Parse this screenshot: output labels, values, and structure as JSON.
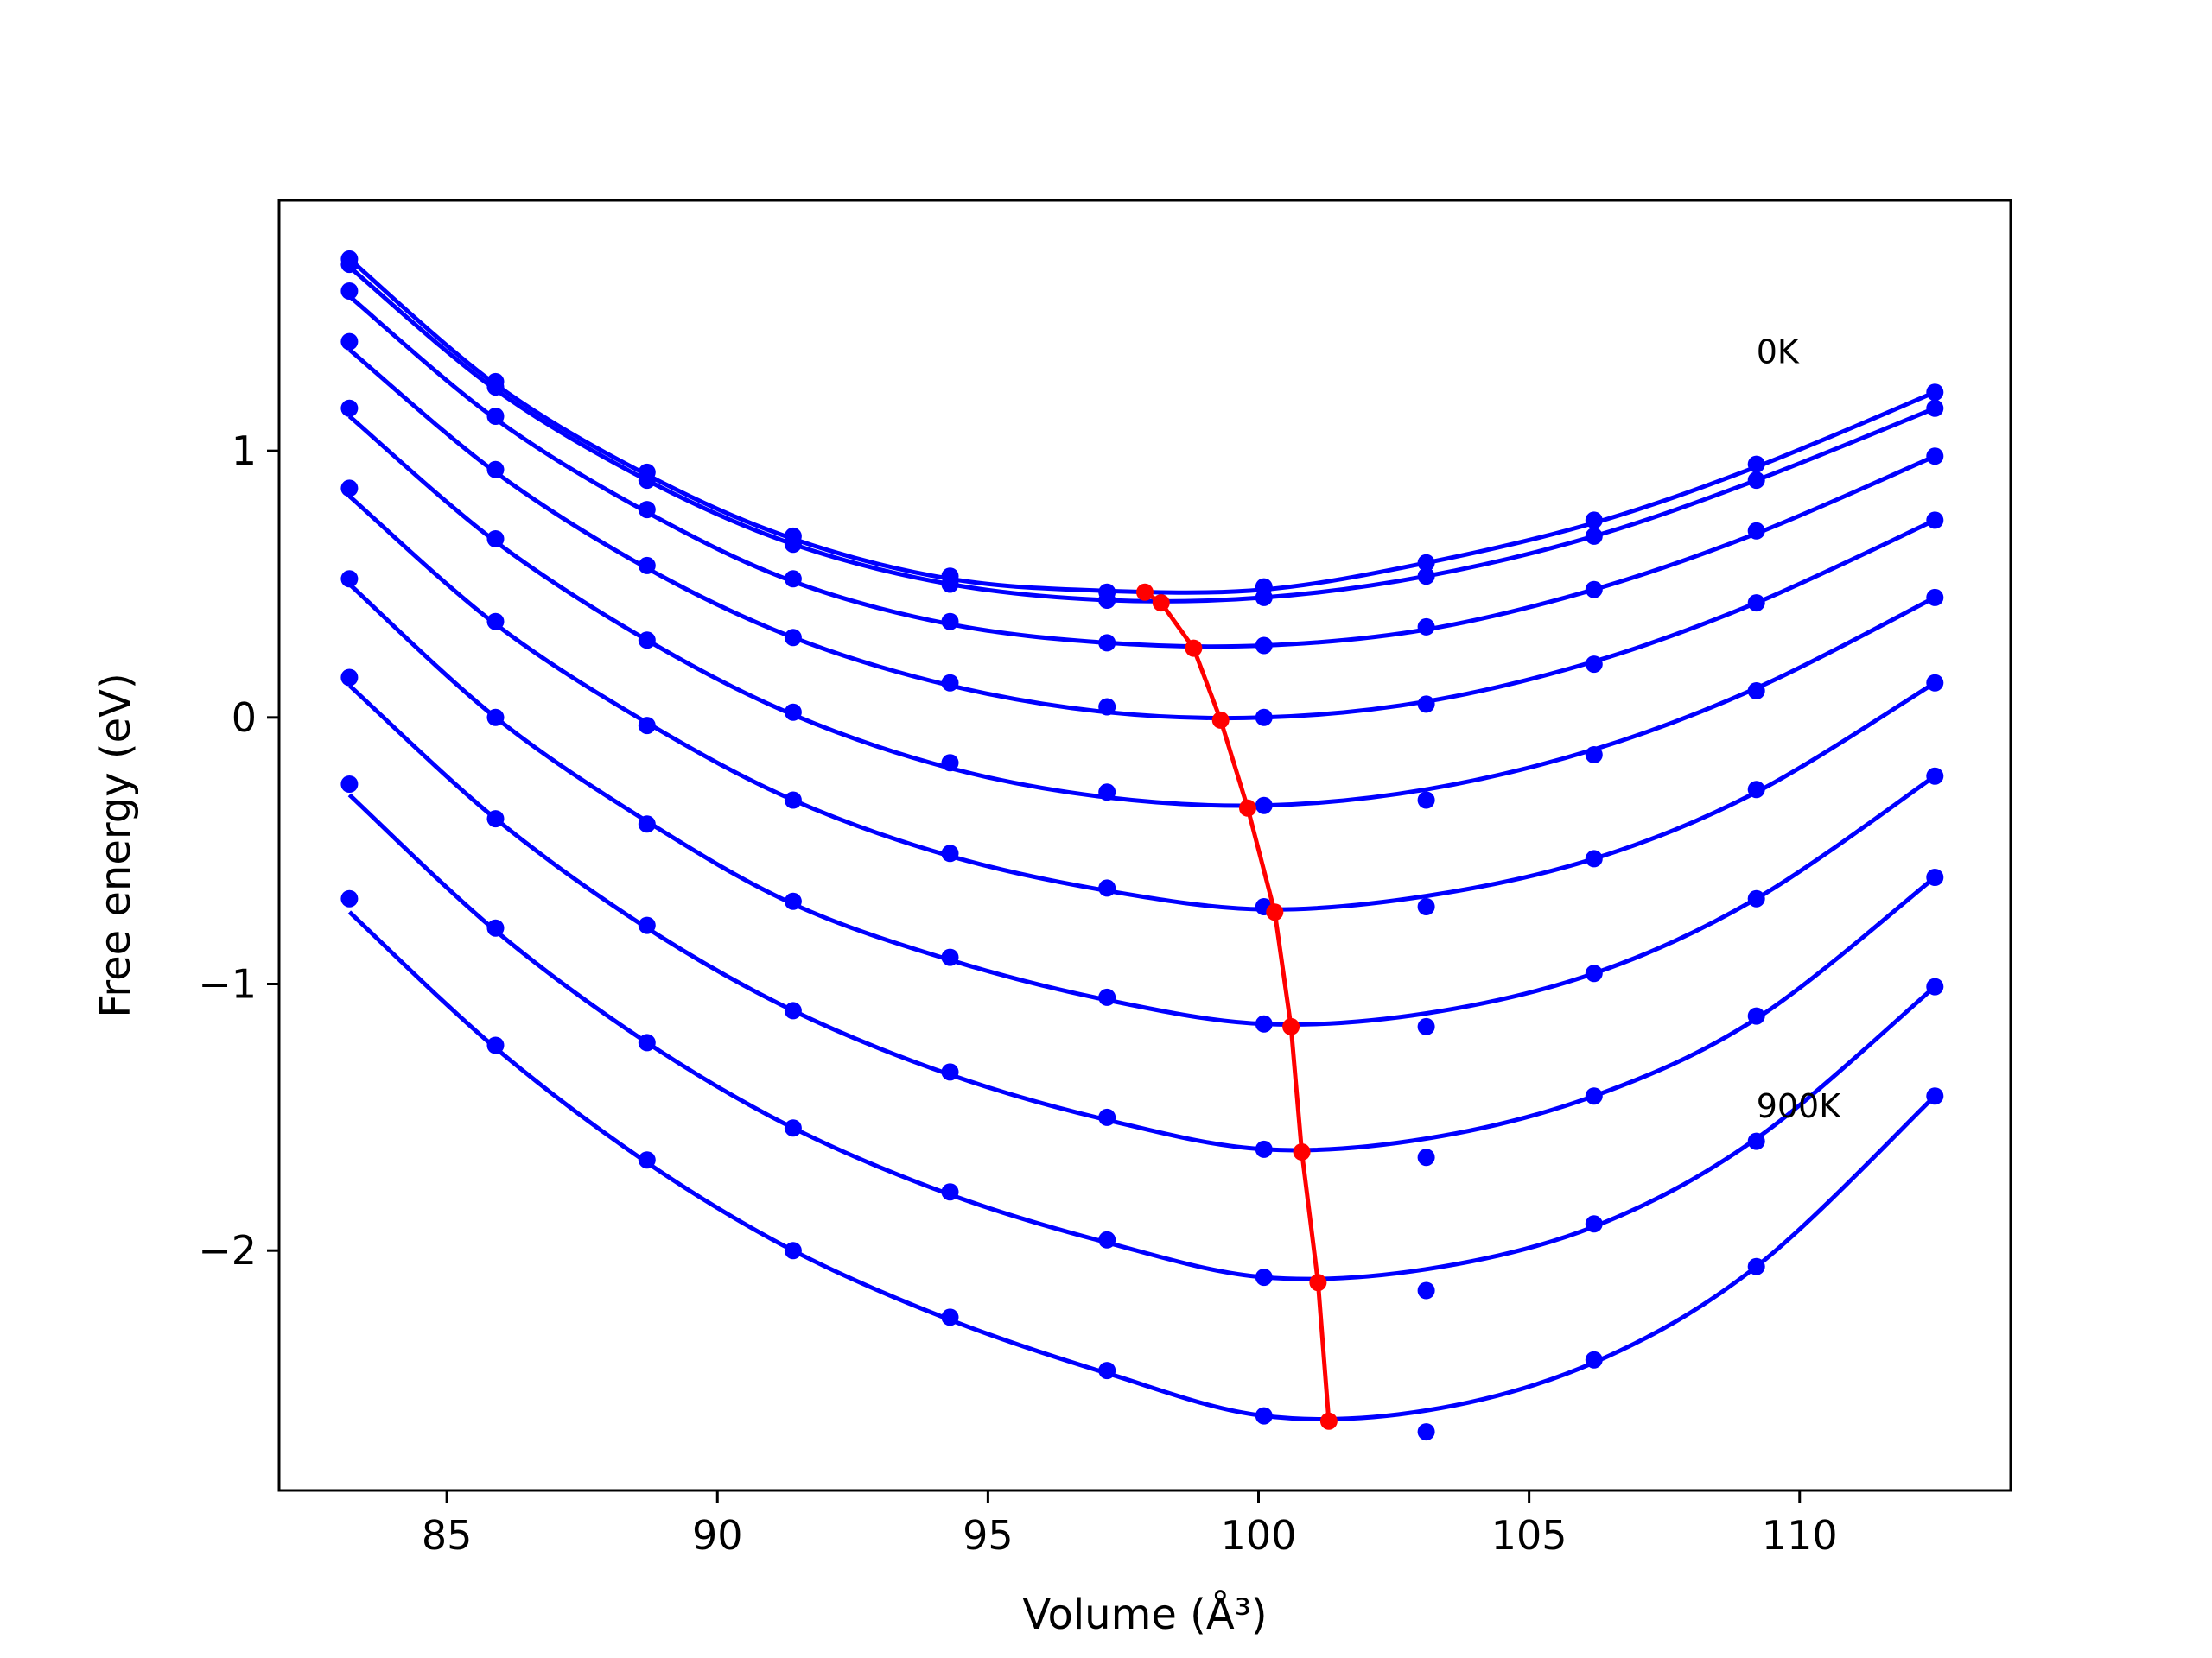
{
  "chart_data": {
    "type": "line",
    "title": "",
    "xlabel": "Volume (Å³)",
    "ylabel": "Free energy (eV)",
    "xlim": [
      81.9,
      113.9
    ],
    "ylim": [
      -2.9,
      1.94
    ],
    "xticks": [
      85,
      90,
      95,
      100,
      105,
      110
    ],
    "yticks": [
      -2,
      -1,
      0,
      1
    ],
    "grid": false,
    "legend": "none",
    "colors": {
      "curves": "#0000ff",
      "min_line": "#ff0000"
    },
    "annotations": [
      {
        "text": "0K",
        "x": 109.2,
        "y": 1.33
      },
      {
        "text": "900K",
        "x": 109.2,
        "y": -1.5
      }
    ],
    "x": [
      83.2,
      85.9,
      88.7,
      91.4,
      94.3,
      97.2,
      100.1,
      103.1,
      106.2,
      109.2,
      112.5
    ],
    "series": [
      {
        "points": [
          1.72,
          1.26,
          0.92,
          0.68,
          0.53,
          0.47,
          0.49,
          0.58,
          0.74,
          0.95,
          1.22
        ],
        "fit": [
          1.72,
          1.25,
          0.91,
          0.67,
          0.52,
          0.475,
          0.48,
          0.58,
          0.73,
          0.94,
          1.22
        ]
      },
      {
        "points": [
          1.7,
          1.24,
          0.89,
          0.65,
          0.5,
          0.44,
          0.45,
          0.53,
          0.68,
          0.89,
          1.16
        ],
        "fit": [
          1.69,
          1.23,
          0.89,
          0.65,
          0.5,
          0.44,
          0.45,
          0.53,
          0.68,
          0.89,
          1.16
        ]
      },
      {
        "points": [
          1.6,
          1.13,
          0.78,
          0.52,
          0.36,
          0.28,
          0.27,
          0.34,
          0.48,
          0.7,
          0.98
        ],
        "fit": [
          1.58,
          1.12,
          0.77,
          0.51,
          0.35,
          0.28,
          0.27,
          0.33,
          0.48,
          0.69,
          0.98
        ]
      },
      {
        "points": [
          1.41,
          0.93,
          0.57,
          0.3,
          0.13,
          0.04,
          0.0,
          0.05,
          0.2,
          0.43,
          0.74
        ],
        "fit": [
          1.38,
          0.92,
          0.56,
          0.3,
          0.12,
          0.02,
          0.0,
          0.06,
          0.21,
          0.43,
          0.74
        ]
      },
      {
        "points": [
          1.16,
          0.67,
          0.29,
          0.02,
          -0.17,
          -0.28,
          -0.33,
          -0.31,
          -0.14,
          0.1,
          0.45
        ],
        "fit": [
          1.13,
          0.66,
          0.29,
          0.01,
          -0.19,
          -0.3,
          -0.33,
          -0.27,
          -0.12,
          0.11,
          0.45
        ]
      },
      {
        "points": [
          0.86,
          0.36,
          -0.03,
          -0.31,
          -0.51,
          -0.64,
          -0.71,
          -0.71,
          -0.53,
          -0.27,
          0.13
        ],
        "fit": [
          0.83,
          0.35,
          -0.02,
          -0.31,
          -0.52,
          -0.65,
          -0.72,
          -0.67,
          -0.53,
          -0.28,
          0.13
        ]
      },
      {
        "points": [
          0.52,
          0.0,
          -0.4,
          -0.69,
          -0.9,
          -1.05,
          -1.15,
          -1.16,
          -0.96,
          -0.68,
          -0.22
        ],
        "fit": [
          0.5,
          0.0,
          -0.39,
          -0.7,
          -0.91,
          -1.06,
          -1.15,
          -1.11,
          -0.96,
          -0.68,
          -0.22
        ]
      },
      {
        "points": [
          0.15,
          -0.38,
          -0.78,
          -1.1,
          -1.33,
          -1.5,
          -1.62,
          -1.65,
          -1.42,
          -1.12,
          -0.6
        ],
        "fit": [
          0.12,
          -0.38,
          -0.79,
          -1.1,
          -1.34,
          -1.51,
          -1.62,
          -1.58,
          -1.42,
          -1.13,
          -0.6
        ]
      },
      {
        "points": [
          -0.25,
          -0.79,
          -1.22,
          -1.54,
          -1.78,
          -1.96,
          -2.1,
          -2.15,
          -1.9,
          -1.59,
          -1.01
        ],
        "fit": [
          -0.29,
          -0.8,
          -1.22,
          -1.54,
          -1.79,
          -1.97,
          -2.1,
          -2.07,
          -1.91,
          -1.58,
          -1.01
        ]
      },
      {
        "points": [
          -0.68,
          -1.23,
          -1.66,
          -2.0,
          -2.25,
          -2.45,
          -2.62,
          -2.68,
          -2.41,
          -2.06,
          -1.42
        ],
        "fit": [
          -0.73,
          -1.24,
          -1.67,
          -2.0,
          -2.26,
          -2.46,
          -2.62,
          -2.6,
          -2.42,
          -2.06,
          -1.42
        ]
      }
    ],
    "minimum_curve": {
      "x": [
        97.9,
        98.2,
        98.8,
        99.3,
        99.8,
        100.3,
        100.6,
        100.8,
        101.1,
        101.3
      ],
      "y": [
        0.47,
        0.43,
        0.26,
        -0.01,
        -0.34,
        -0.73,
        -1.16,
        -1.63,
        -2.12,
        -2.64
      ]
    }
  }
}
